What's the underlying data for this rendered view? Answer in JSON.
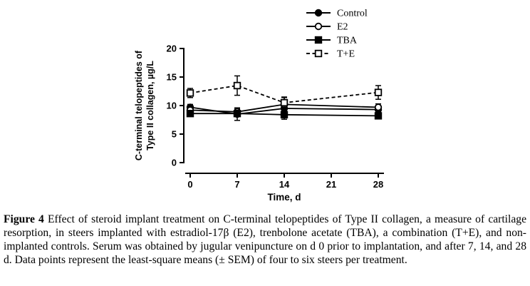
{
  "chart_data": {
    "type": "line",
    "title": "",
    "xlabel": "Time, d",
    "ylabel_lines": [
      "C-terminal telopeptides of",
      "Type II collagen, µg/L"
    ],
    "x": [
      0,
      7,
      14,
      28
    ],
    "xticks": [
      0,
      7,
      14,
      21,
      28
    ],
    "xlim": [
      0,
      28
    ],
    "yticks": [
      0,
      5,
      10,
      15,
      20
    ],
    "ylim": [
      0,
      20
    ],
    "grid": false,
    "legend_position": "top-right",
    "color": "#000000",
    "series": [
      {
        "name": "Control",
        "marker": "filled-circle",
        "line": "solid",
        "values": [
          9.7,
          8.5,
          9.5,
          9.3
        ],
        "sem": [
          0.5,
          1.1,
          1.0,
          0.5
        ]
      },
      {
        "name": "E2",
        "marker": "open-circle",
        "line": "solid",
        "values": [
          9.2,
          8.9,
          10.2,
          9.7
        ],
        "sem": [
          0.5,
          0.5,
          1.2,
          0.6
        ]
      },
      {
        "name": "TBA",
        "marker": "filled-square",
        "line": "solid",
        "values": [
          8.6,
          8.6,
          8.4,
          8.2
        ],
        "sem": [
          0.4,
          0.4,
          0.8,
          0.5
        ]
      },
      {
        "name": "T+E",
        "marker": "open-square",
        "line": "dashed",
        "values": [
          12.2,
          13.5,
          10.5,
          12.3
        ],
        "sem": [
          0.8,
          1.7,
          1.0,
          1.2
        ]
      }
    ]
  },
  "caption": {
    "label": "Figure 4",
    "text": " Effect of steroid implant treatment on C-terminal telopeptides of Type II collagen, a measure of cartilage resorption, in steers implanted with estradiol-17β (E2), trenbolone acetate (TBA), a combination (T+E), and non-implanted controls. Serum was obtained by jugular venipuncture on d 0 prior to implantation, and after 7, 14, and 28 d. Data points represent the least-square means (± SEM) of four to six steers per treatment."
  }
}
